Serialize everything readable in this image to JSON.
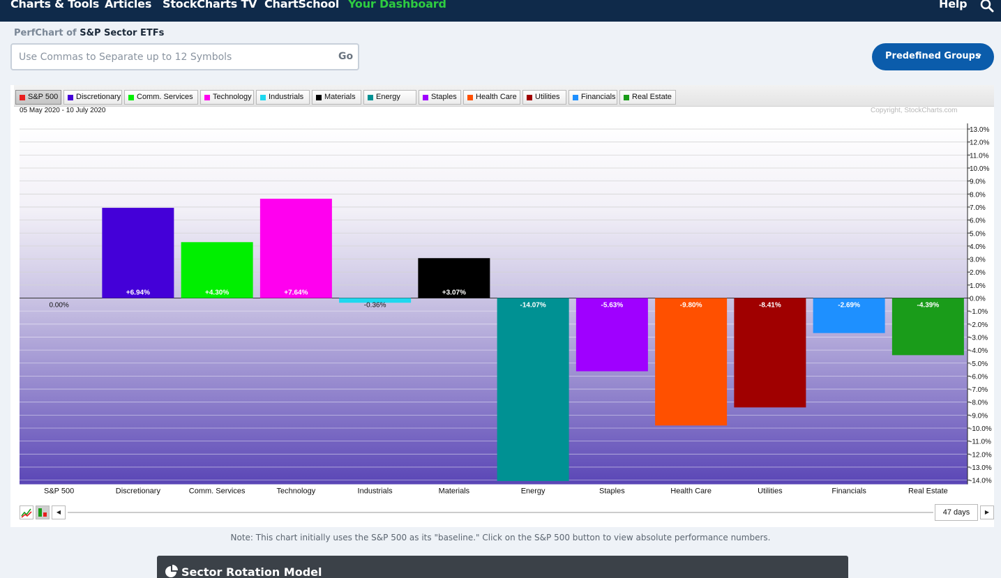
{
  "nav": {
    "items": [
      {
        "label": "Charts & Tools",
        "active": false
      },
      {
        "label": "Articles",
        "active": false
      },
      {
        "label": "StockCharts TV",
        "active": false
      },
      {
        "label": "ChartSchool",
        "active": false
      },
      {
        "label": "Your Dashboard",
        "active": true
      }
    ],
    "help": "Help",
    "search_icon": "search-icon"
  },
  "perfchart": {
    "label": "PerfChart of",
    "name": "S&P Sector ETFs",
    "symbol_placeholder": "Use Commas to Separate up to 12 Symbols",
    "symbol_value": "",
    "go_label": "Go",
    "predefined_label": "Predefined Groups"
  },
  "chart": {
    "date_range": "05 May 2020 - 10 July 2020",
    "copyright": "Copyright, StockCharts.com",
    "days_label": "47 days"
  },
  "chart_data": {
    "type": "bar",
    "categories": [
      "S&P 500",
      "Discretionary",
      "Comm. Services",
      "Technology",
      "Industrials",
      "Materials",
      "Energy",
      "Staples",
      "Health Care",
      "Utilities",
      "Financials",
      "Real Estate"
    ],
    "values": [
      0.0,
      6.94,
      4.3,
      7.64,
      -0.36,
      3.07,
      -14.07,
      -5.63,
      -9.8,
      -8.41,
      -2.69,
      -4.39
    ],
    "data_labels": [
      "0.00%",
      "+6.94%",
      "+4.30%",
      "+7.64%",
      "-0.36%",
      "+3.07%",
      "-14.07%",
      "-5.63%",
      "-9.80%",
      "-8.41%",
      "-2.69%",
      "-4.39%"
    ],
    "colors": [
      "#e81e1e",
      "#4400d8",
      "#00ef00",
      "#ff00ef",
      "#1ed8ef",
      "#000000",
      "#009193",
      "#9f00ff",
      "#ff5000",
      "#a00000",
      "#1e90ff",
      "#1a9c1a"
    ],
    "ylim": [
      -14.0,
      13.0
    ],
    "yticks": [
      13.0,
      12.0,
      11.0,
      10.0,
      9.0,
      8.0,
      7.0,
      6.0,
      5.0,
      4.0,
      3.0,
      2.0,
      1.0,
      0.0,
      -1.0,
      -2.0,
      -3.0,
      -4.0,
      -5.0,
      -6.0,
      -7.0,
      -8.0,
      -9.0,
      -10.0,
      -11.0,
      -12.0,
      -13.0,
      -14.0
    ],
    "ytick_labels": [
      "13.0%",
      "12.0%",
      "11.0%",
      "10.0%",
      "9.0%",
      "8.0%",
      "7.0%",
      "6.0%",
      "5.0%",
      "4.0%",
      "3.0%",
      "2.0%",
      "1.0%",
      "0.0%",
      "-1.0%",
      "-2.0%",
      "-3.0%",
      "-4.0%",
      "-5.0%",
      "-6.0%",
      "-7.0%",
      "-8.0%",
      "-9.0%",
      "-10.0%",
      "-11.0%",
      "-12.0%",
      "-13.0%",
      "-14.0%"
    ],
    "legend": [
      "S&P 500",
      "Discretionary",
      "Comm. Services",
      "Technology",
      "Industrials",
      "Materials",
      "Energy",
      "Staples",
      "Health Care",
      "Utilities",
      "Financials",
      "Real Estate"
    ],
    "legend_active": "S&P 500",
    "grid": true,
    "yaxis_side": "right"
  },
  "note": "Note: This chart initially uses the S&P 500 as its \"baseline.\" Click on the S&P 500 button to view absolute performance numbers.",
  "section": {
    "title": "Sector Rotation Model",
    "icon": "pie-chart-icon"
  }
}
